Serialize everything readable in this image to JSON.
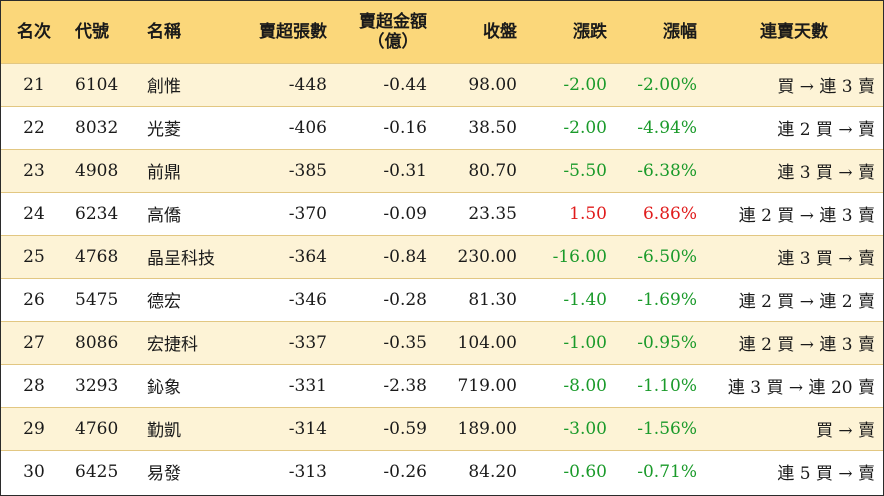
{
  "headers": {
    "rank": "名次",
    "code": "代號",
    "name": "名稱",
    "sell_volume": "賣超張數",
    "sell_amount_line1": "賣超金額",
    "sell_amount_line2": "（億）",
    "close": "收盤",
    "change": "漲跌",
    "change_pct": "漲幅",
    "streak": "連賣天數"
  },
  "colors": {
    "header_bg": "#fbd77a",
    "stripe_bg": "#fdf3d6",
    "negative": "#1a9a2a",
    "positive": "#e01b1b"
  },
  "rows": [
    {
      "rank": "21",
      "code": "6104",
      "name": "創惟",
      "sell_volume": "-448",
      "sell_amount": "-0.44",
      "close": "98.00",
      "change": "-2.00",
      "change_pct": "-2.00%",
      "direction": "down",
      "streak": "買 → 連 3 賣"
    },
    {
      "rank": "22",
      "code": "8032",
      "name": "光菱",
      "sell_volume": "-406",
      "sell_amount": "-0.16",
      "close": "38.50",
      "change": "-2.00",
      "change_pct": "-4.94%",
      "direction": "down",
      "streak": "連 2 買 → 賣"
    },
    {
      "rank": "23",
      "code": "4908",
      "name": "前鼎",
      "sell_volume": "-385",
      "sell_amount": "-0.31",
      "close": "80.70",
      "change": "-5.50",
      "change_pct": "-6.38%",
      "direction": "down",
      "streak": "連 3 買 → 賣"
    },
    {
      "rank": "24",
      "code": "6234",
      "name": "高僑",
      "sell_volume": "-370",
      "sell_amount": "-0.09",
      "close": "23.35",
      "change": "1.50",
      "change_pct": "6.86%",
      "direction": "up",
      "streak": "連 2 買 → 連 3 賣"
    },
    {
      "rank": "25",
      "code": "4768",
      "name": "晶呈科技",
      "sell_volume": "-364",
      "sell_amount": "-0.84",
      "close": "230.00",
      "change": "-16.00",
      "change_pct": "-6.50%",
      "direction": "down",
      "streak": "連 3 買 → 賣"
    },
    {
      "rank": "26",
      "code": "5475",
      "name": "德宏",
      "sell_volume": "-346",
      "sell_amount": "-0.28",
      "close": "81.30",
      "change": "-1.40",
      "change_pct": "-1.69%",
      "direction": "down",
      "streak": "連 2 買 → 連 2 賣"
    },
    {
      "rank": "27",
      "code": "8086",
      "name": "宏捷科",
      "sell_volume": "-337",
      "sell_amount": "-0.35",
      "close": "104.00",
      "change": "-1.00",
      "change_pct": "-0.95%",
      "direction": "down",
      "streak": "連 2 買 → 連 3 賣"
    },
    {
      "rank": "28",
      "code": "3293",
      "name": "鈊象",
      "sell_volume": "-331",
      "sell_amount": "-2.38",
      "close": "719.00",
      "change": "-8.00",
      "change_pct": "-1.10%",
      "direction": "down",
      "streak": "連 3 買 → 連 20 賣"
    },
    {
      "rank": "29",
      "code": "4760",
      "name": "勤凱",
      "sell_volume": "-314",
      "sell_amount": "-0.59",
      "close": "189.00",
      "change": "-3.00",
      "change_pct": "-1.56%",
      "direction": "down",
      "streak": "買 → 賣"
    },
    {
      "rank": "30",
      "code": "6425",
      "name": "易發",
      "sell_volume": "-313",
      "sell_amount": "-0.26",
      "close": "84.20",
      "change": "-0.60",
      "change_pct": "-0.71%",
      "direction": "down",
      "streak": "連 5 買 → 賣"
    }
  ]
}
